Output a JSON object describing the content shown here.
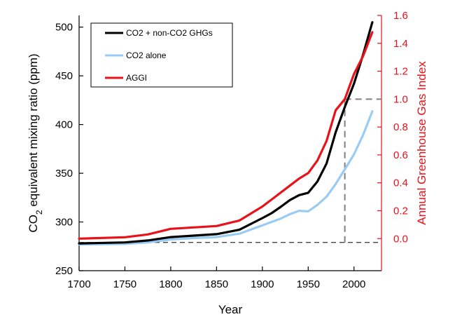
{
  "colors": {
    "combined": "#000000",
    "co2_alone": "#99ccf5",
    "aggi": "#e8121a",
    "right_axis": "#e8121a",
    "reference": "#808080"
  },
  "chart_data": {
    "type": "line",
    "xlabel": "Year",
    "ylabel_left": {
      "base": "CO",
      "sub": "2",
      "rest": " equivalent mixing ratio (ppm)"
    },
    "ylabel_right": "Annual Greenhouse Gas Index",
    "xlim": [
      1700,
      2030
    ],
    "ylim_left": [
      250,
      512
    ],
    "ylim_right": [
      -0.23,
      1.6
    ],
    "x_ticks": [
      "1700",
      "1750",
      "1800",
      "1850",
      "1900",
      "1950",
      "2000"
    ],
    "y_ticks_left": [
      "250",
      "300",
      "350",
      "400",
      "450",
      "500"
    ],
    "y_ticks_right": [
      "0.0",
      "0.2",
      "0.4",
      "0.6",
      "0.8",
      "1.0",
      "1.2",
      "1.4",
      "1.6"
    ],
    "legend_position": "top-left",
    "legend": [
      "CO2 + non-CO2 GHGs",
      "CO2 alone",
      "AGGI"
    ],
    "reference_lines": {
      "baseline_ppm": 279,
      "year_1990": 1990,
      "aggi_1990": 1.0
    },
    "series": [
      {
        "name": "CO2 + non-CO2 GHGs",
        "x": [
          1700,
          1750,
          1775,
          1800,
          1825,
          1850,
          1875,
          1900,
          1910,
          1920,
          1930,
          1940,
          1950,
          1960,
          1970,
          1980,
          1990,
          2000,
          2010,
          2020
        ],
        "y": [
          278.0,
          279.0,
          281.0,
          284.5,
          286.0,
          287.5,
          292.0,
          304.0,
          309.0,
          315.5,
          322.5,
          327.5,
          330.0,
          341.5,
          360.0,
          392.0,
          418.0,
          442.0,
          472.0,
          505.0
        ]
      },
      {
        "name": "CO2 alone",
        "x": [
          1700,
          1750,
          1775,
          1800,
          1825,
          1850,
          1875,
          1900,
          1910,
          1920,
          1930,
          1940,
          1950,
          1960,
          1970,
          1980,
          1990,
          2000,
          2010,
          2020
        ],
        "y": [
          277.0,
          277.5,
          279.0,
          282.0,
          283.5,
          284.5,
          288.0,
          296.5,
          300.0,
          303.5,
          308.0,
          311.5,
          311.0,
          317.5,
          326.0,
          339.0,
          354.0,
          369.5,
          389.5,
          413.5
        ]
      },
      {
        "name": "AGGI",
        "x": [
          1700,
          1750,
          1775,
          1800,
          1825,
          1850,
          1875,
          1900,
          1910,
          1920,
          1930,
          1940,
          1950,
          1960,
          1970,
          1980,
          1990,
          2000,
          2010,
          2020
        ],
        "y": [
          0.0,
          0.01,
          0.03,
          0.07,
          0.08,
          0.09,
          0.13,
          0.23,
          0.28,
          0.33,
          0.38,
          0.43,
          0.47,
          0.56,
          0.7,
          0.92,
          1.0,
          1.18,
          1.31,
          1.48
        ]
      }
    ]
  }
}
